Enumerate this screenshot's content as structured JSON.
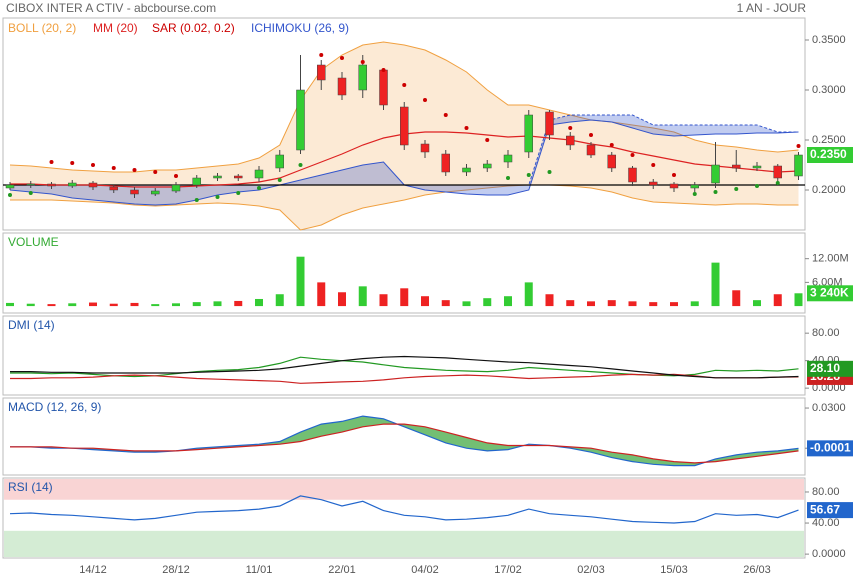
{
  "chart_data": [
    {
      "type": "candlestick",
      "title": "CIBOX INTER A CTIV - abcbourse.com",
      "period": "1 AN - JOUR",
      "categories": [
        null,
        null,
        null,
        null,
        "14/12",
        null,
        null,
        null,
        "28/12",
        null,
        null,
        null,
        "11/01",
        null,
        null,
        null,
        "22/01",
        null,
        null,
        null,
        "04/02",
        null,
        null,
        null,
        "17/02",
        null,
        null,
        null,
        "02/03",
        null,
        null,
        null,
        "15/03",
        null,
        null,
        null,
        "26/03",
        null,
        null
      ],
      "open": [
        0.202,
        0.205,
        0.206,
        0.204,
        0.207,
        0.203,
        0.2,
        0.196,
        0.199,
        0.205,
        0.212,
        0.214,
        0.212,
        0.222,
        0.24,
        0.325,
        0.312,
        0.3,
        0.32,
        0.283,
        0.246,
        0.236,
        0.218,
        0.222,
        0.228,
        0.238,
        0.278,
        0.254,
        0.245,
        0.235,
        0.222,
        0.208,
        0.206,
        0.202,
        0.207,
        0.225,
        0.222,
        0.224,
        0.214
      ],
      "high": [
        0.208,
        0.209,
        0.208,
        0.21,
        0.209,
        0.205,
        0.203,
        0.202,
        0.208,
        0.215,
        0.217,
        0.216,
        0.224,
        0.24,
        0.335,
        0.33,
        0.318,
        0.335,
        0.322,
        0.288,
        0.25,
        0.24,
        0.226,
        0.23,
        0.24,
        0.28,
        0.28,
        0.258,
        0.248,
        0.238,
        0.224,
        0.211,
        0.208,
        0.208,
        0.248,
        0.24,
        0.228,
        0.226,
        0.238
      ],
      "low": [
        0.2,
        0.202,
        0.201,
        0.202,
        0.2,
        0.197,
        0.192,
        0.194,
        0.197,
        0.202,
        0.209,
        0.209,
        0.208,
        0.218,
        0.236,
        0.3,
        0.29,
        0.292,
        0.28,
        0.24,
        0.232,
        0.214,
        0.214,
        0.218,
        0.222,
        0.232,
        0.25,
        0.24,
        0.232,
        0.218,
        0.204,
        0.201,
        0.198,
        0.198,
        0.202,
        0.218,
        0.219,
        0.208,
        0.21
      ],
      "close": [
        0.205,
        0.206,
        0.204,
        0.207,
        0.203,
        0.2,
        0.196,
        0.199,
        0.205,
        0.212,
        0.214,
        0.212,
        0.22,
        0.235,
        0.3,
        0.31,
        0.295,
        0.325,
        0.285,
        0.245,
        0.238,
        0.218,
        0.222,
        0.226,
        0.235,
        0.275,
        0.255,
        0.245,
        0.235,
        0.222,
        0.208,
        0.205,
        0.202,
        0.205,
        0.225,
        0.222,
        0.224,
        0.212,
        0.235
      ],
      "close_label": "0.2350",
      "up_color": "#33cc33",
      "down_color": "#ee2222",
      "ylim": [
        0.16,
        0.372
      ],
      "yticks": [
        {
          "value": 0.35,
          "label": "0.3500"
        },
        {
          "value": 0.3,
          "label": "0.3000"
        },
        {
          "value": 0.25,
          "label": "0.2500"
        },
        {
          "value": 0.2,
          "label": "0.2000"
        }
      ],
      "hline": 0.205,
      "overlays": [
        {
          "name": "BOLL (20, 2)",
          "color": "#f0a040",
          "kind": "band",
          "upper": [
            0.225,
            0.224,
            0.222,
            0.22,
            0.219,
            0.218,
            0.218,
            0.22,
            0.22,
            0.222,
            0.224,
            0.226,
            0.232,
            0.245,
            0.29,
            0.32,
            0.335,
            0.345,
            0.348,
            0.345,
            0.34,
            0.33,
            0.318,
            0.3,
            0.285,
            0.285,
            0.28,
            0.275,
            0.27,
            0.268,
            0.265,
            0.262,
            0.258,
            0.25,
            0.245,
            0.243,
            0.24,
            0.238,
            0.24
          ],
          "lower": [
            0.19,
            0.19,
            0.19,
            0.189,
            0.188,
            0.187,
            0.185,
            0.184,
            0.185,
            0.186,
            0.187,
            0.186,
            0.184,
            0.18,
            0.16,
            0.165,
            0.175,
            0.182,
            0.186,
            0.19,
            0.195,
            0.198,
            0.2,
            0.202,
            0.204,
            0.205,
            0.205,
            0.204,
            0.202,
            0.198,
            0.192,
            0.188,
            0.187,
            0.186,
            0.185,
            0.186,
            0.186,
            0.185,
            0.185
          ]
        },
        {
          "name": "MM (20)",
          "color": "#dd2222",
          "kind": "line",
          "values": [
            0.206,
            0.206,
            0.205,
            0.205,
            0.205,
            0.204,
            0.203,
            0.203,
            0.203,
            0.204,
            0.205,
            0.206,
            0.208,
            0.212,
            0.22,
            0.228,
            0.236,
            0.245,
            0.252,
            0.256,
            0.258,
            0.258,
            0.257,
            0.255,
            0.253,
            0.254,
            0.252,
            0.25,
            0.246,
            0.243,
            0.238,
            0.234,
            0.23,
            0.226,
            0.224,
            0.222,
            0.22,
            0.218,
            0.219
          ]
        },
        {
          "name": "SAR (0.02, 0.2)",
          "color": "#cc0000",
          "below_color": "#229922",
          "kind": "dots",
          "values": [
            0.195,
            0.197,
            0.228,
            0.227,
            0.225,
            0.222,
            0.22,
            0.218,
            0.214,
            0.19,
            0.193,
            0.197,
            0.202,
            0.21,
            0.225,
            0.335,
            0.332,
            0.328,
            0.32,
            0.305,
            0.29,
            0.275,
            0.262,
            0.25,
            0.212,
            0.215,
            0.218,
            0.262,
            0.255,
            0.245,
            0.235,
            0.225,
            0.215,
            0.196,
            0.198,
            0.201,
            0.204,
            0.207,
            0.244
          ]
        },
        {
          "name": "ICHIMOKU (26, 9)",
          "color": "#3355cc",
          "kind": "cloud",
          "span_a": [
            0.2,
            0.198,
            0.196,
            0.192,
            0.19,
            0.188,
            0.186,
            0.185,
            0.186,
            0.19,
            0.195,
            0.198,
            0.2,
            0.205,
            0.21,
            0.215,
            0.22,
            0.225,
            0.228,
            0.205,
            0.2,
            0.198,
            0.196,
            0.195,
            0.195,
            0.2,
            0.265,
            0.268,
            0.27,
            0.268,
            0.262,
            0.256,
            0.254,
            0.255,
            0.256,
            0.256,
            0.257,
            0.257,
            0.258
          ],
          "span_b": [
            0.205,
            0.205,
            0.205,
            0.205,
            0.205,
            0.205,
            0.205,
            0.205,
            0.205,
            0.205,
            0.205,
            0.205,
            0.205,
            0.205,
            0.205,
            0.205,
            0.205,
            0.205,
            0.205,
            0.205,
            0.205,
            0.205,
            0.205,
            0.205,
            0.205,
            0.205,
            0.27,
            0.275,
            0.275,
            0.275,
            0.275,
            0.265,
            0.265,
            0.265,
            0.265,
            0.265,
            0.265,
            0.258,
            0.258
          ]
        }
      ]
    },
    {
      "type": "bar",
      "title": "VOLUME",
      "title_color": "#33aa33",
      "values": [
        0.8,
        0.6,
        0.5,
        0.7,
        0.9,
        0.6,
        0.8,
        0.5,
        0.7,
        1.0,
        1.2,
        1.3,
        1.8,
        3.0,
        12.5,
        6.0,
        3.5,
        5.0,
        3.0,
        4.5,
        2.5,
        1.5,
        1.2,
        2.0,
        2.5,
        6.0,
        3.0,
        1.5,
        1.2,
        1.5,
        1.2,
        1.0,
        1.0,
        1.2,
        11.0,
        4.0,
        1.5,
        3.0,
        3.24
      ],
      "value_labels": [
        null,
        null,
        null,
        null,
        null,
        null,
        null,
        null,
        null,
        null,
        null,
        null,
        null,
        null,
        null,
        null,
        null,
        null,
        null,
        null,
        null,
        null,
        null,
        null,
        null,
        null,
        null,
        null,
        null,
        null,
        null,
        null,
        null,
        null,
        null,
        null,
        null,
        null,
        "3 240K"
      ],
      "ylim": [
        -1.75,
        18.5
      ],
      "yticks": [
        {
          "value": 12,
          "label": "12.00M"
        },
        {
          "value": 6,
          "label": "6.00M"
        }
      ]
    },
    {
      "type": "line",
      "title": "DMI (14)",
      "series": [
        {
          "color": "#229922",
          "label": "28.10",
          "values": [
            22,
            22,
            21,
            22,
            20,
            18,
            17,
            18,
            21,
            24,
            26,
            27,
            30,
            36,
            45,
            42,
            40,
            38,
            34,
            30,
            28,
            26,
            25,
            24,
            26,
            30,
            28,
            26,
            24,
            22,
            20,
            19,
            18,
            20,
            26,
            25,
            26,
            25,
            28.1
          ]
        },
        {
          "color": "#cc2222",
          "label": "16.28",
          "values": [
            14,
            14,
            15,
            15,
            16,
            18,
            19,
            18,
            16,
            14,
            13,
            12,
            11,
            10,
            7,
            8,
            9,
            10,
            12,
            15,
            17,
            18,
            19,
            18,
            16,
            14,
            15,
            16,
            17,
            19,
            20,
            19,
            20,
            18,
            15,
            15,
            15,
            16,
            16.28
          ]
        },
        {
          "color": "#111111",
          "values": [
            24,
            24,
            23,
            23,
            22,
            22,
            22,
            22,
            22,
            23,
            24,
            25,
            26,
            28,
            32,
            36,
            40,
            43,
            45,
            46,
            45,
            44,
            42,
            40,
            38,
            37,
            35,
            33,
            31,
            28,
            25,
            22,
            19,
            17,
            15,
            15,
            15,
            16,
            17
          ]
        }
      ],
      "ylim": [
        -10,
        105
      ],
      "yticks": [
        {
          "value": 80,
          "label": "80.00"
        },
        {
          "value": 40,
          "label": "40.00"
        },
        {
          "value": 0,
          "label": "0.0000"
        }
      ]
    },
    {
      "type": "line",
      "title": "MACD (12, 26, 9)",
      "histogram_color": "#44aa44",
      "series": [
        {
          "color": "#2266cc",
          "label": "-0.0001",
          "values": [
            0.001,
            0.001,
            0.0,
            0.0,
            -0.001,
            -0.002,
            -0.003,
            -0.003,
            -0.002,
            0.0,
            0.001,
            0.002,
            0.003,
            0.005,
            0.012,
            0.018,
            0.02,
            0.024,
            0.022,
            0.016,
            0.01,
            0.004,
            0.0,
            -0.002,
            -0.001,
            0.003,
            0.002,
            0.0,
            -0.003,
            -0.007,
            -0.01,
            -0.012,
            -0.013,
            -0.013,
            -0.008,
            -0.005,
            -0.003,
            -0.002,
            -0.0001
          ]
        },
        {
          "color": "#cc2222",
          "values": [
            0.001,
            0.001,
            0.001,
            0.0,
            0.0,
            -0.001,
            -0.002,
            -0.002,
            -0.002,
            -0.001,
            0.0,
            0.001,
            0.002,
            0.003,
            0.005,
            0.009,
            0.012,
            0.016,
            0.018,
            0.018,
            0.016,
            0.012,
            0.008,
            0.004,
            0.002,
            0.002,
            0.002,
            0.001,
            0.0,
            -0.003,
            -0.005,
            -0.008,
            -0.01,
            -0.011,
            -0.01,
            -0.008,
            -0.006,
            -0.004,
            -0.002
          ]
        }
      ],
      "ylim": [
        -0.02,
        0.0375
      ],
      "yticks": [
        {
          "value": 0.03,
          "label": "0.0300"
        },
        {
          "value": 0,
          "label": "0.0000"
        }
      ]
    },
    {
      "type": "line",
      "title": "RSI (14)",
      "overbought": 70,
      "oversold": 30,
      "series": [
        {
          "color": "#2266cc",
          "label": "56.67",
          "values": [
            52,
            53,
            51,
            50,
            48,
            46,
            44,
            46,
            50,
            54,
            55,
            56,
            58,
            62,
            75,
            70,
            62,
            68,
            56,
            50,
            48,
            44,
            45,
            47,
            50,
            58,
            52,
            50,
            48,
            45,
            42,
            41,
            40,
            42,
            52,
            50,
            51,
            47,
            56.67
          ]
        }
      ],
      "ylim": [
        -5,
        98
      ],
      "yticks": [
        {
          "value": 80,
          "label": "80.00"
        },
        {
          "value": 40,
          "label": "40.00"
        },
        {
          "value": 0,
          "label": "0.0000"
        }
      ]
    }
  ]
}
